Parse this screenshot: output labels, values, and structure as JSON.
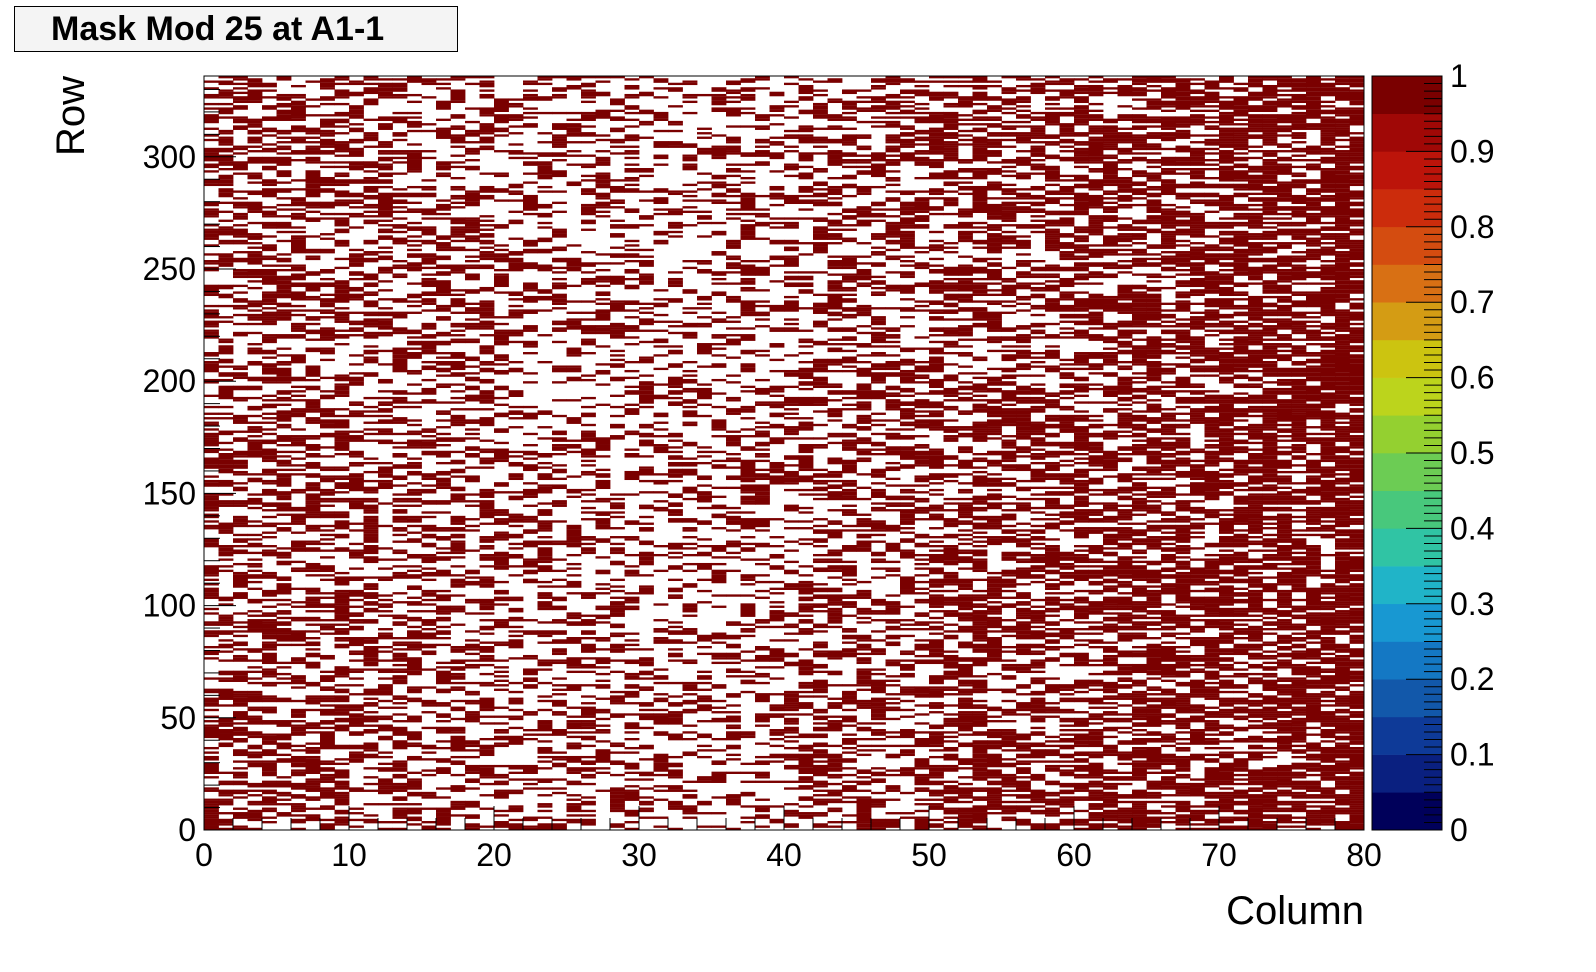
{
  "chart_data": {
    "type": "heatmap",
    "title": "Mask Mod 25 at A1-1",
    "xlabel": "Column",
    "ylabel": "Row",
    "xlim": [
      0,
      80
    ],
    "ylim": [
      0,
      336
    ],
    "x_ticks": [
      "0",
      "10",
      "20",
      "30",
      "40",
      "50",
      "60",
      "70",
      "80"
    ],
    "y_ticks": [
      "0",
      "50",
      "100",
      "150",
      "200",
      "250",
      "300"
    ],
    "z_ticks": [
      "0",
      "0.1",
      "0.2",
      "0.3",
      "0.4",
      "0.5",
      "0.6",
      "0.7",
      "0.8",
      "0.9",
      "1"
    ],
    "zlim": [
      0,
      1
    ],
    "n_columns": 80,
    "n_rows": 336,
    "cell_value": 1,
    "cell_color": "#7a0000",
    "masked_fraction_by_column_band": [
      {
        "columns": [
          0,
          10
        ],
        "fraction": 0.42
      },
      {
        "columns": [
          10,
          20
        ],
        "fraction": 0.36
      },
      {
        "columns": [
          20,
          30
        ],
        "fraction": 0.28
      },
      {
        "columns": [
          30,
          40
        ],
        "fraction": 0.26
      },
      {
        "columns": [
          40,
          50
        ],
        "fraction": 0.38
      },
      {
        "columns": [
          50,
          60
        ],
        "fraction": 0.48
      },
      {
        "columns": [
          60,
          70
        ],
        "fraction": 0.56
      },
      {
        "columns": [
          70,
          78
        ],
        "fraction": 0.62
      },
      {
        "columns": [
          78,
          80
        ],
        "fraction": 0.8
      }
    ],
    "palette": [
      "#00005a",
      "#0a2080",
      "#0e3a98",
      "#1258aa",
      "#1478c4",
      "#1898d2",
      "#20b4c8",
      "#30c4a4",
      "#48c87c",
      "#6ccc54",
      "#94d030",
      "#bcd41c",
      "#ccc410",
      "#d49c14",
      "#d87014",
      "#d44c10",
      "#cc2c0c",
      "#bc140a",
      "#a00806",
      "#7a0000"
    ],
    "legend": "colorbar-right",
    "grid": false
  }
}
